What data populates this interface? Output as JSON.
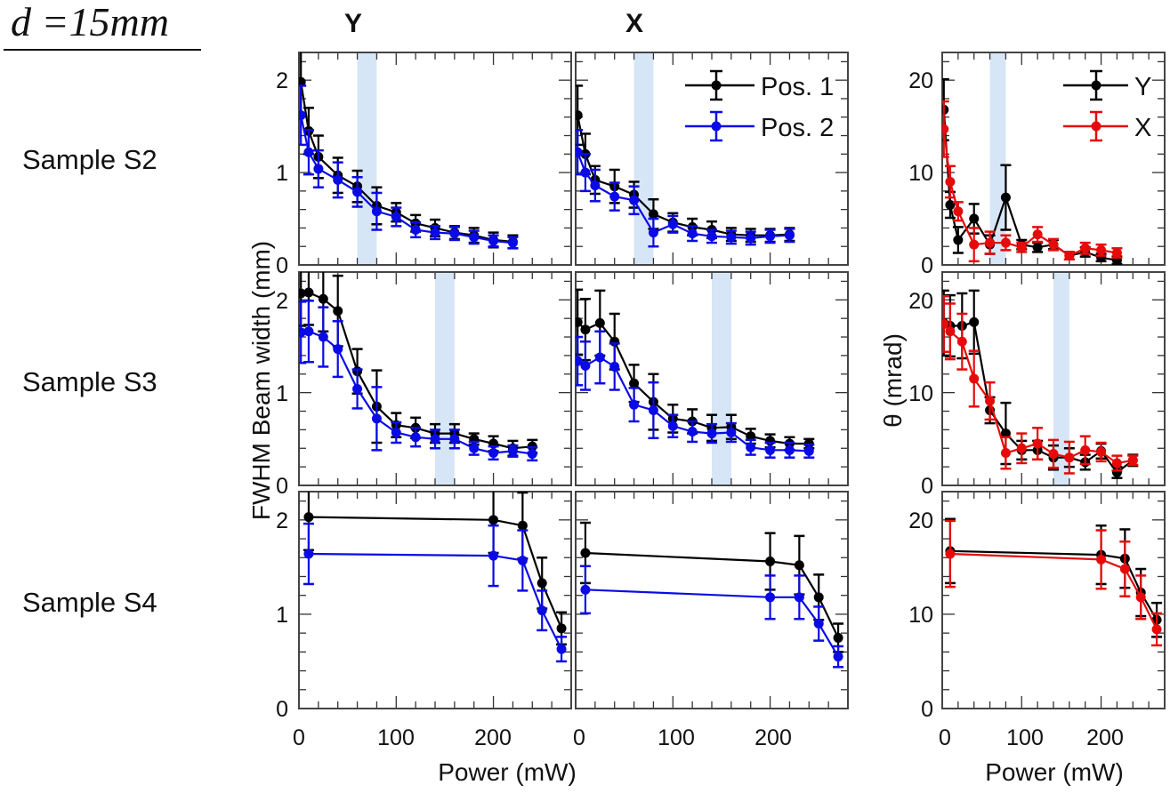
{
  "header": {
    "distance_label": "d =15mm",
    "col_y": "Y",
    "col_x": "X"
  },
  "rows": [
    "Sample S2",
    "Sample S3",
    "Sample S4"
  ],
  "axes": {
    "ylabel_width": "FWHM Beam width (mm)",
    "ylabel_theta": "θ (mrad)",
    "xlabel": "Power (mW)",
    "yticks_width": [
      "0",
      "1",
      "2"
    ],
    "yticks_theta": [
      "0",
      "10",
      "20"
    ],
    "xticks": [
      "0",
      "100",
      "200"
    ]
  },
  "legends": {
    "width": [
      "Pos. 1",
      "Pos. 2"
    ],
    "theta": [
      "Y",
      "X"
    ]
  },
  "colors": {
    "pos1": "#000000",
    "pos2": "#0a0ae6",
    "theta_y": "#000000",
    "theta_x": "#e60a0a",
    "band": "#d6e6f7"
  },
  "chart_data": [
    {
      "type": "line",
      "sample": "Sample S2",
      "panel": "Y",
      "ylabel": "FWHM Beam width (mm)",
      "xlim": [
        0,
        280
      ],
      "ylim": [
        0,
        2.3
      ],
      "highlight_band": [
        60,
        80
      ],
      "x": [
        2,
        10,
        20,
        40,
        60,
        80,
        100,
        120,
        140,
        160,
        180,
        200,
        220
      ],
      "series": [
        {
          "name": "Pos. 1",
          "y": [
            1.98,
            1.45,
            1.17,
            0.97,
            0.85,
            0.64,
            0.57,
            0.45,
            0.4,
            0.35,
            0.32,
            0.27,
            0.25
          ],
          "err": [
            0.35,
            0.25,
            0.23,
            0.19,
            0.17,
            0.2,
            0.1,
            0.09,
            0.09,
            0.07,
            0.08,
            0.08,
            0.07
          ]
        },
        {
          "name": "Pos. 2",
          "y": [
            1.62,
            1.22,
            1.04,
            0.92,
            0.79,
            0.58,
            0.52,
            0.38,
            0.35,
            0.34,
            0.3,
            0.26,
            0.24
          ],
          "err": [
            0.32,
            0.24,
            0.2,
            0.19,
            0.16,
            0.2,
            0.1,
            0.08,
            0.07,
            0.07,
            0.07,
            0.06,
            0.06
          ]
        }
      ]
    },
    {
      "type": "line",
      "sample": "Sample S2",
      "panel": "X",
      "xlim": [
        0,
        280
      ],
      "ylim": [
        0,
        2.3
      ],
      "highlight_band": [
        60,
        80
      ],
      "legend": "top-right",
      "x": [
        2,
        10,
        20,
        40,
        60,
        80,
        100,
        120,
        140,
        160,
        180,
        200,
        220
      ],
      "series": [
        {
          "name": "Pos. 1",
          "y": [
            1.62,
            1.2,
            0.92,
            0.85,
            0.76,
            0.55,
            0.46,
            0.41,
            0.38,
            0.33,
            0.32,
            0.32,
            0.33
          ],
          "err": [
            0.32,
            0.22,
            0.15,
            0.18,
            0.14,
            0.16,
            0.1,
            0.09,
            0.09,
            0.07,
            0.07,
            0.07,
            0.07
          ]
        },
        {
          "name": "Pos. 2",
          "y": [
            1.22,
            1.0,
            0.86,
            0.74,
            0.7,
            0.35,
            0.44,
            0.34,
            0.31,
            0.3,
            0.29,
            0.31,
            0.32
          ],
          "err": [
            0.24,
            0.2,
            0.17,
            0.15,
            0.15,
            0.15,
            0.09,
            0.08,
            0.07,
            0.07,
            0.07,
            0.07,
            0.07
          ]
        }
      ]
    },
    {
      "type": "line",
      "sample": "Sample S2",
      "panel": "theta",
      "xlim": [
        0,
        280
      ],
      "ylim": [
        0,
        23
      ],
      "highlight_band": [
        60,
        80
      ],
      "legend": "top-right",
      "x": [
        2,
        10,
        20,
        40,
        60,
        80,
        100,
        120,
        140,
        160,
        180,
        200,
        220
      ],
      "series": [
        {
          "name": "Y",
          "y": [
            16.8,
            6.5,
            2.7,
            5.0,
            2.2,
            7.3,
            2.2,
            1.9,
            2.2,
            1.0,
            1.4,
            0.8,
            0.5
          ],
          "err": [
            3.3,
            1.4,
            1.4,
            1.6,
            1.0,
            3.5,
            0.5,
            0.5,
            0.5,
            0.4,
            0.5,
            0.4,
            0.4
          ]
        },
        {
          "name": "X",
          "y": [
            14.7,
            9.0,
            5.8,
            2.2,
            2.4,
            2.4,
            1.9,
            3.3,
            2.2,
            1.0,
            1.8,
            1.6,
            1.3
          ],
          "err": [
            3,
            1.7,
            1,
            1.8,
            1.2,
            0.8,
            0.5,
            0.8,
            0.6,
            0.4,
            0.6,
            0.6,
            0.5
          ]
        }
      ]
    },
    {
      "type": "line",
      "sample": "Sample S3",
      "panel": "Y",
      "xlim": [
        0,
        280
      ],
      "ylim": [
        0,
        2.3
      ],
      "highlight_band": [
        140,
        160
      ],
      "x": [
        2,
        10,
        25,
        40,
        60,
        80,
        100,
        120,
        140,
        160,
        180,
        200,
        220,
        240
      ],
      "series": [
        {
          "name": "Pos. 1",
          "y": [
            2.07,
            2.08,
            2.01,
            1.88,
            1.23,
            0.85,
            0.65,
            0.62,
            0.56,
            0.56,
            0.5,
            0.45,
            0.4,
            0.42
          ],
          "err": [
            0.35,
            0.35,
            0.35,
            0.38,
            0.24,
            0.39,
            0.13,
            0.11,
            0.1,
            0.1,
            0.06,
            0.08,
            0.08,
            0.07
          ]
        },
        {
          "name": "Pos. 2",
          "y": [
            1.65,
            1.66,
            1.6,
            1.47,
            1.04,
            0.72,
            0.57,
            0.52,
            0.5,
            0.5,
            0.4,
            0.35,
            0.37,
            0.34
          ],
          "err": [
            0.33,
            0.33,
            0.32,
            0.3,
            0.21,
            0.34,
            0.11,
            0.1,
            0.1,
            0.1,
            0.07,
            0.07,
            0.06,
            0.07
          ]
        }
      ]
    },
    {
      "type": "line",
      "sample": "Sample S3",
      "panel": "X",
      "xlim": [
        0,
        280
      ],
      "ylim": [
        0,
        2.3
      ],
      "highlight_band": [
        140,
        160
      ],
      "x": [
        2,
        10,
        25,
        40,
        60,
        80,
        100,
        120,
        140,
        160,
        180,
        200,
        220,
        240
      ],
      "series": [
        {
          "name": "Pos. 1",
          "y": [
            1.76,
            1.68,
            1.75,
            1.55,
            1.1,
            0.9,
            0.72,
            0.69,
            0.62,
            0.63,
            0.53,
            0.48,
            0.45,
            0.45
          ],
          "err": [
            0.35,
            0.33,
            0.35,
            0.3,
            0.2,
            0.3,
            0.15,
            0.13,
            0.14,
            0.13,
            0.08,
            0.07,
            0.07,
            0.05
          ]
        },
        {
          "name": "Pos. 2",
          "y": [
            1.34,
            1.29,
            1.38,
            1.28,
            0.87,
            0.81,
            0.64,
            0.58,
            0.56,
            0.57,
            0.41,
            0.38,
            0.38,
            0.37
          ],
          "err": [
            0.26,
            0.26,
            0.28,
            0.25,
            0.18,
            0.3,
            0.12,
            0.11,
            0.1,
            0.1,
            0.08,
            0.08,
            0.08,
            0.07
          ]
        }
      ]
    },
    {
      "type": "line",
      "sample": "Sample S3",
      "panel": "theta",
      "ylabel": "θ (mrad)",
      "xlim": [
        0,
        280
      ],
      "ylim": [
        0,
        23
      ],
      "highlight_band": [
        140,
        160
      ],
      "x": [
        2,
        10,
        25,
        40,
        60,
        80,
        100,
        120,
        140,
        160,
        180,
        200,
        220,
        240
      ],
      "series": [
        {
          "name": "Y",
          "y": [
            17.5,
            17.2,
            17.2,
            17.6,
            8.1,
            5.6,
            3.8,
            3.8,
            3.0,
            3.0,
            2.5,
            3.7,
            1.4,
            2.7
          ],
          "err": [
            3.5,
            3.3,
            3.5,
            3.4,
            1.4,
            3.3,
            1,
            1,
            1.3,
            1,
            0.8,
            0.8,
            0.6,
            0.6
          ]
        },
        {
          "name": "X",
          "y": [
            17.4,
            16.6,
            15.5,
            11.5,
            9.1,
            3.5,
            4.0,
            4.5,
            3.4,
            3.0,
            3.8,
            3.6,
            2.4,
            2.7
          ],
          "err": [
            3,
            3,
            3,
            3,
            2,
            1.7,
            1.6,
            1.7,
            1.5,
            1.7,
            1.5,
            1,
            0.8,
            0.5
          ]
        }
      ]
    },
    {
      "type": "line",
      "sample": "Sample S4",
      "panel": "Y",
      "xlim": [
        0,
        280
      ],
      "ylim": [
        0,
        2.3
      ],
      "x": [
        10,
        200,
        230,
        250,
        270
      ],
      "series": [
        {
          "name": "Pos. 1",
          "y": [
            2.03,
            2.0,
            1.94,
            1.33,
            0.85
          ],
          "err": [
            0.35,
            0.35,
            0.35,
            0.27,
            0.17
          ]
        },
        {
          "name": "Pos. 2",
          "y": [
            1.64,
            1.62,
            1.57,
            1.04,
            0.63
          ],
          "err": [
            0.32,
            0.32,
            0.32,
            0.21,
            0.13
          ]
        }
      ]
    },
    {
      "type": "line",
      "sample": "Sample S4",
      "panel": "X",
      "xlabel": "Power (mW)",
      "xlim": [
        0,
        280
      ],
      "ylim": [
        0,
        2.3
      ],
      "x": [
        10,
        200,
        230,
        250,
        270
      ],
      "series": [
        {
          "name": "Pos. 1",
          "y": [
            1.65,
            1.56,
            1.52,
            1.18,
            0.75
          ],
          "err": [
            0.32,
            0.3,
            0.31,
            0.24,
            0.15
          ]
        },
        {
          "name": "Pos. 2",
          "y": [
            1.26,
            1.18,
            1.18,
            0.9,
            0.55
          ],
          "err": [
            0.25,
            0.23,
            0.23,
            0.18,
            0.11
          ]
        }
      ]
    },
    {
      "type": "line",
      "sample": "Sample S4",
      "panel": "theta",
      "xlabel": "Power (mW)",
      "xlim": [
        0,
        280
      ],
      "ylim": [
        0,
        23
      ],
      "x": [
        10,
        200,
        230,
        250,
        270
      ],
      "series": [
        {
          "name": "Y",
          "y": [
            16.7,
            16.3,
            15.9,
            12.3,
            9.4
          ],
          "err": [
            3.4,
            3.1,
            3.1,
            2.5,
            1.8
          ]
        },
        {
          "name": "X",
          "y": [
            16.4,
            15.8,
            14.8,
            11.8,
            8.4
          ],
          "err": [
            3.5,
            3.1,
            2.9,
            2.3,
            1.7
          ]
        }
      ]
    }
  ]
}
